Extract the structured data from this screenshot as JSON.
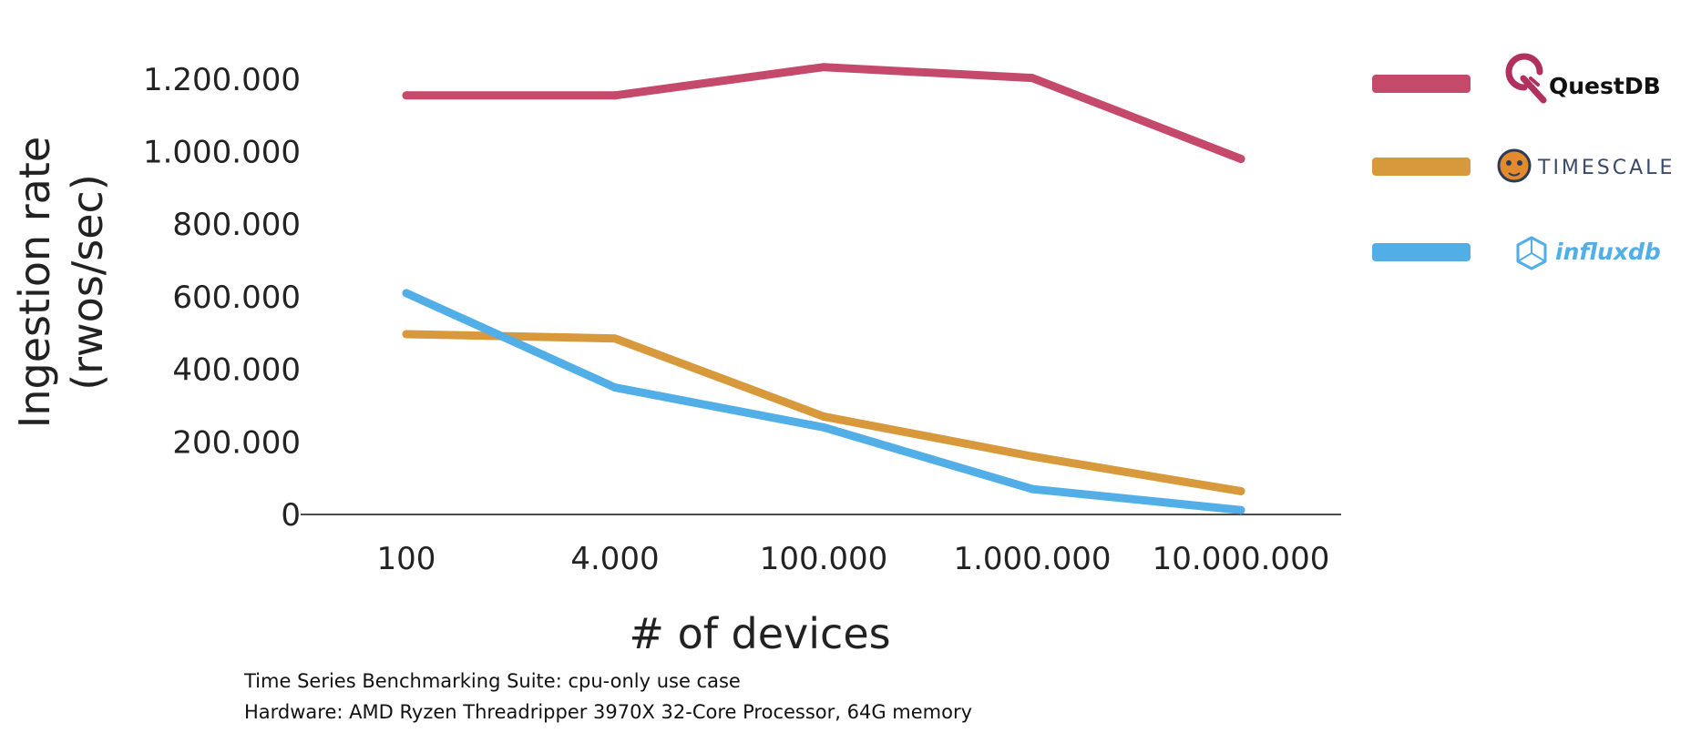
{
  "chart_data": {
    "type": "line",
    "categories": [
      "100",
      "4.000",
      "100.000",
      "1.000.000",
      "10.000.000"
    ],
    "series": [
      {
        "name": "QuestDB",
        "color": "#C4496B",
        "icon": "questdb-logo-icon",
        "values": [
          1155000,
          1155000,
          1233000,
          1203000,
          980000
        ]
      },
      {
        "name": "TIMESCALE",
        "color": "#D8993D",
        "icon": "timescale-tiger-logo-icon",
        "values": [
          497000,
          485000,
          270000,
          160000,
          64000
        ]
      },
      {
        "name": "influxdb",
        "color": "#52AEE6",
        "icon": "influxdb-logo-icon",
        "values": [
          610000,
          350000,
          240000,
          70000,
          12000
        ]
      }
    ],
    "xlabel": "# of devices",
    "ylabel_line1": "Ingestion rate",
    "ylabel_line2": "(rwos/sec)",
    "ylim": [
      0,
      1300000
    ],
    "yticks": [
      {
        "value": 0,
        "label": "0"
      },
      {
        "value": 200000,
        "label": "200.000"
      },
      {
        "value": 400000,
        "label": "400.000"
      },
      {
        "value": 600000,
        "label": "600.000"
      },
      {
        "value": 800000,
        "label": "800.000"
      },
      {
        "value": 1000000,
        "label": "1.000.000"
      },
      {
        "value": 1200000,
        "label": "1.200.000"
      }
    ],
    "grid": false,
    "legend_position": "right"
  },
  "footnotes": {
    "line1": "Time Series Benchmarking Suite: cpu-only use case",
    "line2": "Hardware: AMD Ryzen Threadripper 3970X 32-Core Processor, 64G memory"
  }
}
